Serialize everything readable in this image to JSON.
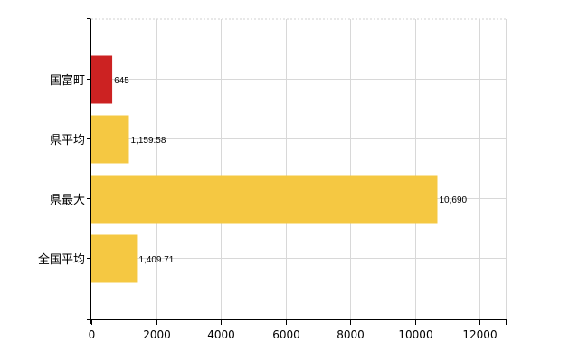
{
  "chart_data": {
    "type": "bar",
    "orientation": "horizontal",
    "categories": [
      "国富町",
      "県平均",
      "県最大",
      "全国平均"
    ],
    "values": [
      645,
      1159.58,
      10690,
      1409.71
    ],
    "value_labels": [
      "645",
      "1,159.58",
      "10,690",
      "1,409.71"
    ],
    "bar_colors": [
      "#cc2222",
      "#f5c842",
      "#f5c842",
      "#f5c842"
    ],
    "xlim": [
      0,
      12800
    ],
    "xticks": [
      0,
      2000,
      4000,
      6000,
      8000,
      10000,
      12000
    ],
    "xtick_labels": [
      "0",
      "2000",
      "4000",
      "6000",
      "8000",
      "10000",
      "12000"
    ],
    "grid": true,
    "legend": "none",
    "title": "",
    "xlabel": "",
    "ylabel": ""
  }
}
